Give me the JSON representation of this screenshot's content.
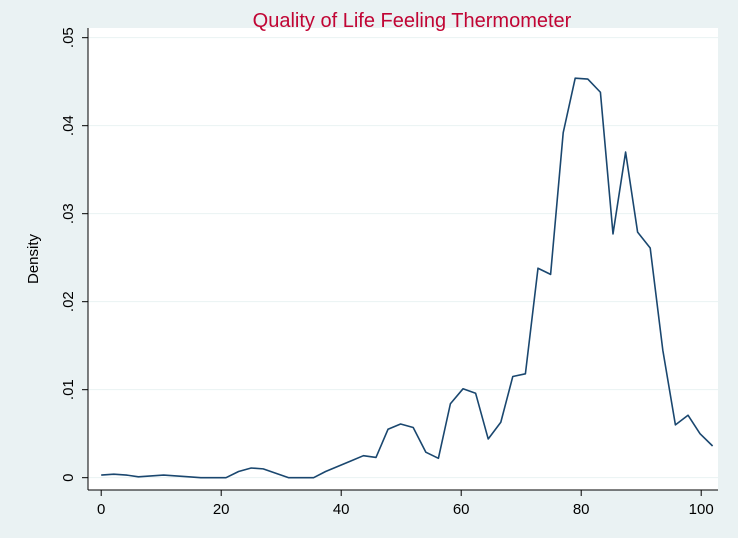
{
  "chart_data": {
    "type": "line",
    "title": "Quality of Life Feeling Thermometer",
    "y_label": "Density",
    "x": [
      0,
      2.1,
      4.2,
      6.2,
      8.3,
      10.4,
      12.5,
      14.6,
      16.6,
      18.7,
      20.8,
      22.9,
      25.0,
      27.0,
      29.1,
      31.2,
      33.3,
      35.4,
      37.4,
      39.5,
      41.6,
      43.7,
      45.8,
      47.8,
      49.9,
      52.0,
      54.1,
      56.2,
      58.2,
      60.3,
      62.4,
      64.5,
      66.6,
      68.6,
      70.7,
      72.8,
      74.9,
      77.0,
      79.0,
      81.1,
      83.2,
      85.3,
      87.4,
      89.4,
      91.5,
      93.6,
      95.7,
      97.8,
      99.8,
      101.9
    ],
    "series": [
      {
        "color": "#1a476f",
        "values": [
          0.0003,
          0.0004,
          0.0003,
          0.0001,
          0.0002,
          0.0003,
          0.0002,
          0.0001,
          0,
          0,
          0,
          0.0007,
          0.0011,
          0.001,
          0.0005,
          0,
          0,
          0,
          0.0007,
          0.0013,
          0.0019,
          0.0025,
          0.0023,
          0.0055,
          0.0061,
          0.0057,
          0.0029,
          0.0022,
          0.0084,
          0.0101,
          0.0096,
          0.0044,
          0.0063,
          0.0115,
          0.0118,
          0.0238,
          0.0231,
          0.0392,
          0.0454,
          0.0453,
          0.0438,
          0.0277,
          0.037,
          0.0279,
          0.0261,
          0.0145,
          0.006,
          0.0071,
          0.005,
          0.0036
        ]
      }
    ],
    "xlim": [
      -2.2,
      102.8
    ],
    "xticks": [
      0,
      20,
      40,
      60,
      80,
      100
    ],
    "ylim": [
      -0.0014,
      0.0511
    ],
    "yticks": [
      0,
      {
        "value": 0.01,
        "label": ".01"
      },
      {
        "value": 0.02,
        "label": ".02"
      },
      {
        "value": 0.03,
        "label": ".03"
      },
      {
        "value": 0.04,
        "label": ".04"
      },
      {
        "value": 0.05,
        "label": ".05"
      }
    ],
    "grid": true
  }
}
